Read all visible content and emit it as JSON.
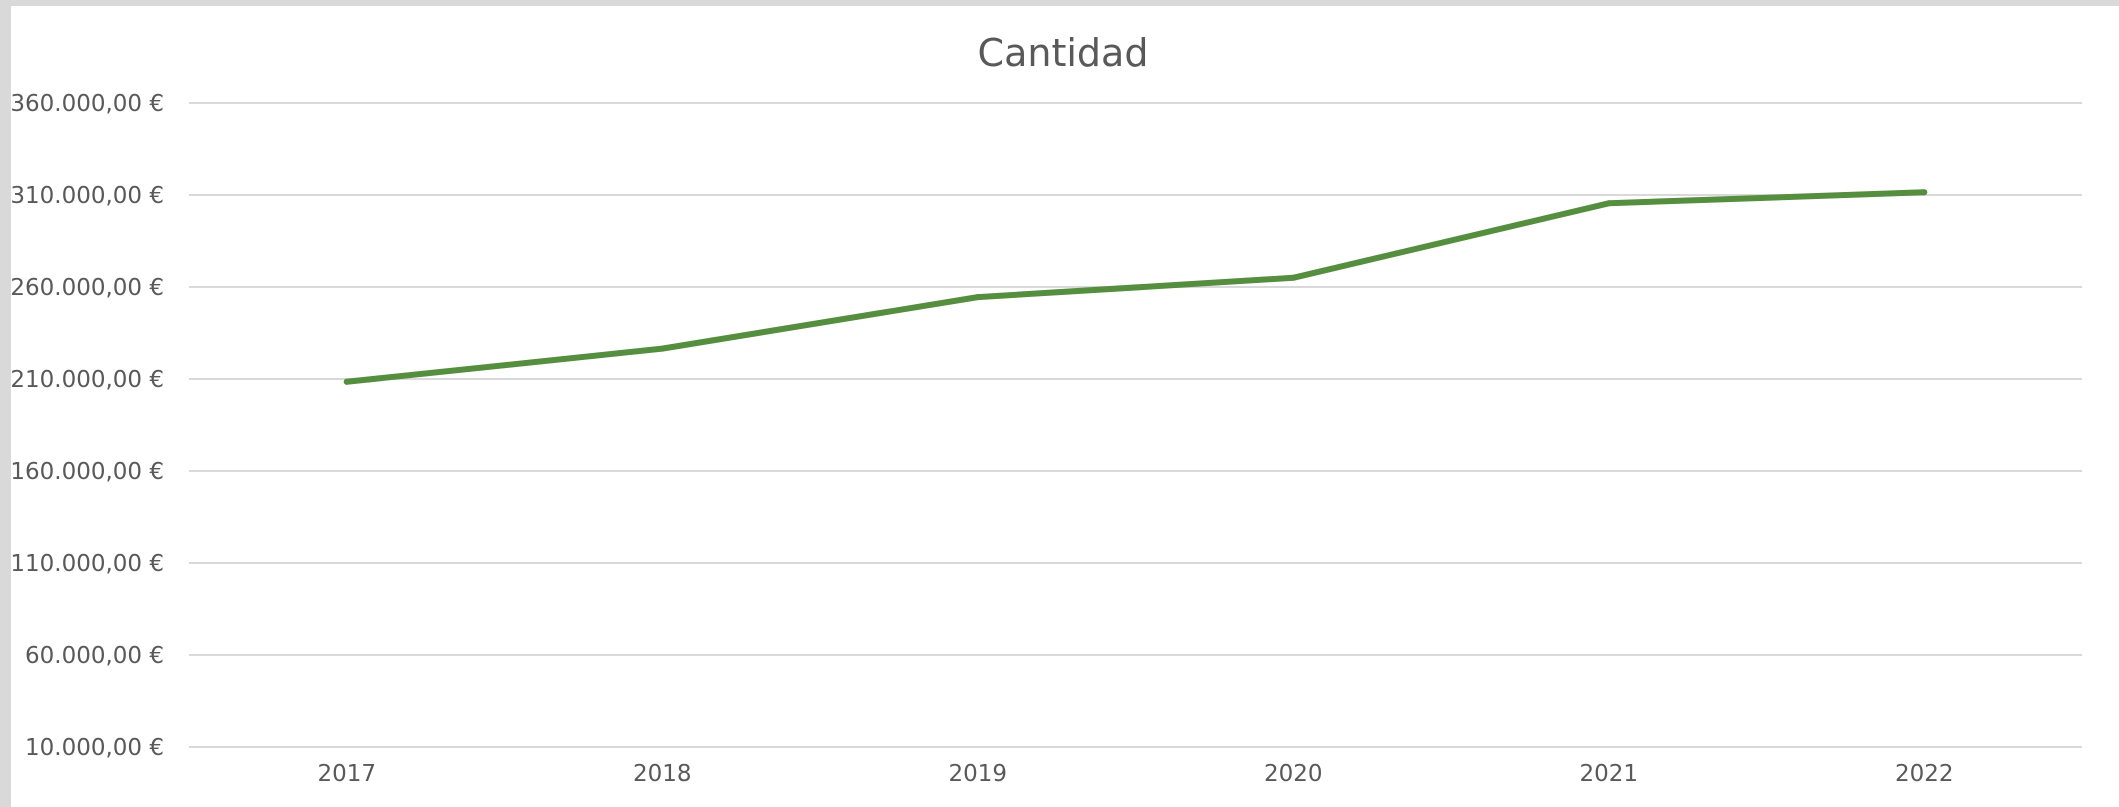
{
  "chart_data": {
    "type": "line",
    "title": "Cantidad",
    "xlabel": "",
    "ylabel": "",
    "categories": [
      "2017",
      "2018",
      "2019",
      "2020",
      "2021",
      "2022"
    ],
    "series": [
      {
        "color": "#548e3e",
        "values": [
          208500,
          226500,
          254500,
          265000,
          305500,
          311500
        ]
      }
    ],
    "ylim": [
      10000,
      360000
    ],
    "yticks": [
      10000,
      60000,
      110000,
      160000,
      210000,
      260000,
      310000,
      360000
    ],
    "ytick_labels": [
      "10.000,00 €",
      "60.000,00 €",
      "110.000,00 €",
      "160.000,00 €",
      "210.000,00 €",
      "260.000,00 €",
      "310.000,00 €",
      "360.000,00 €"
    ],
    "grid": true,
    "legend": "none"
  }
}
